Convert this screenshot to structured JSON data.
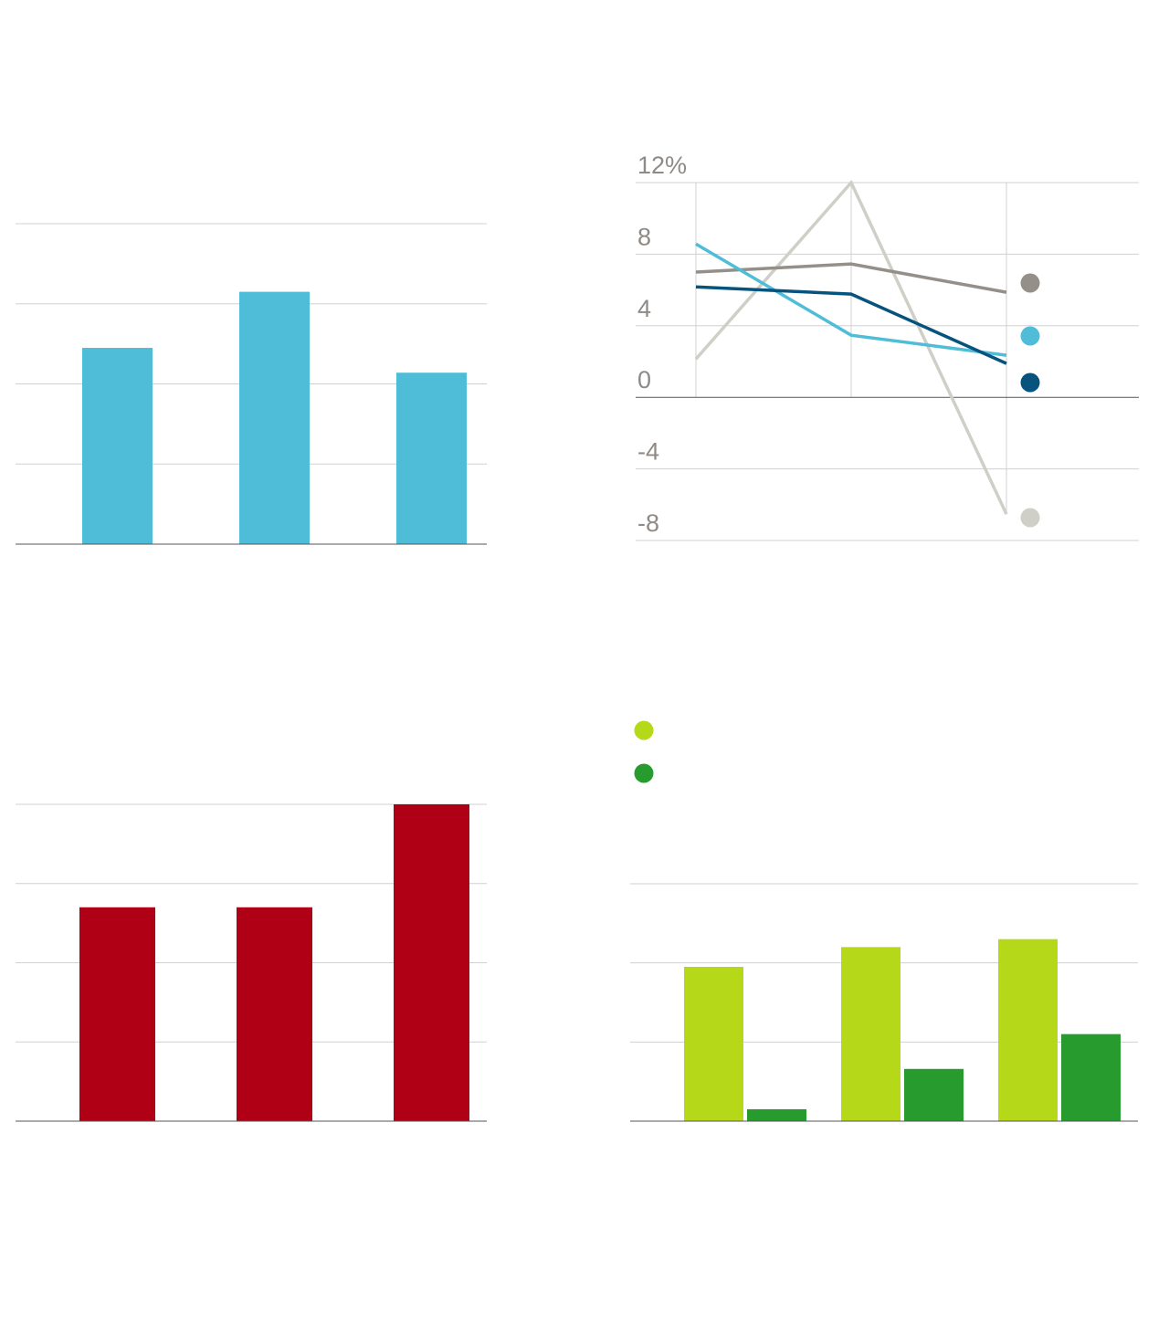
{
  "chart_data": [
    {
      "type": "bar",
      "categories": [
        "",
        "",
        ""
      ],
      "values": [
        2.45,
        3.15,
        2.14
      ],
      "ylim": [
        0,
        4
      ],
      "grid": true,
      "colors": {
        "bar": "#4fbdd8"
      }
    },
    {
      "type": "line",
      "x": [
        1,
        2,
        3
      ],
      "ylim": [
        -8,
        12
      ],
      "yticks": [
        12,
        8,
        4,
        0,
        -4,
        -8
      ],
      "ytick_labels": [
        "12%",
        "8",
        "4",
        "0",
        "-4",
        "-8"
      ],
      "grid": true,
      "legend": "right",
      "series": [
        {
          "values": [
            7.0,
            7.45,
            5.87
          ],
          "color": "#958f8a"
        },
        {
          "values": [
            8.57,
            3.47,
            2.35
          ],
          "color": "#4fbdd8"
        },
        {
          "values": [
            6.17,
            5.77,
            1.89
          ],
          "color": "#06537e"
        },
        {
          "values": [
            2.14,
            12.0,
            -6.53
          ],
          "color": "#d0cfc7"
        }
      ]
    },
    {
      "type": "bar",
      "categories": [
        "",
        "",
        ""
      ],
      "values": [
        2.7,
        2.7,
        4.0
      ],
      "ylim": [
        0,
        4
      ],
      "grid": true,
      "colors": {
        "bar": "#b00016"
      }
    },
    {
      "type": "bar",
      "categories": [
        "",
        "",
        ""
      ],
      "ylim": [
        0,
        3
      ],
      "grid": true,
      "legend": "top-left",
      "series": [
        {
          "values": [
            1.95,
            2.2,
            2.3
          ],
          "color": "#b5d919"
        },
        {
          "values": [
            0.15,
            0.66,
            1.1
          ],
          "color": "#289b2e"
        }
      ]
    }
  ]
}
